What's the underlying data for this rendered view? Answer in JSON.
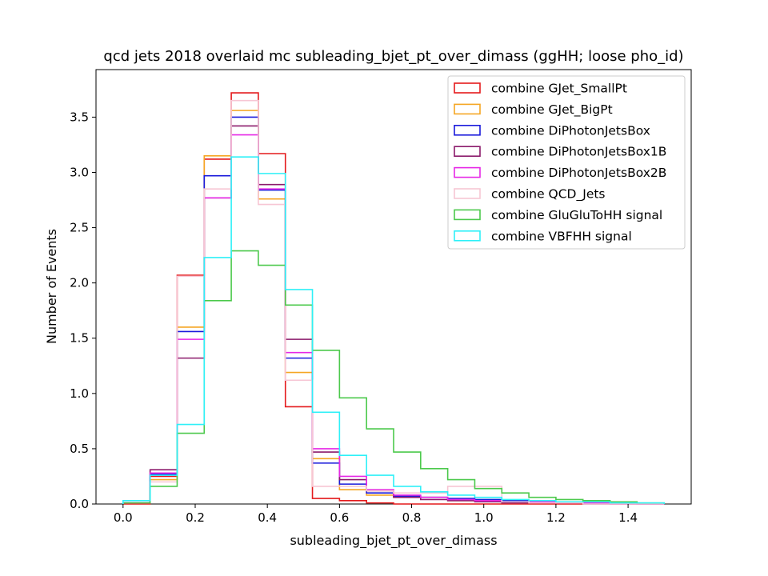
{
  "chart_data": {
    "type": "histogram",
    "title": "qcd jets 2018 overlaid mc subleading_bjet_pt_over_dimass (ggHH; loose pho_id)",
    "xlabel": "subleading_bjet_pt_over_dimass",
    "ylabel": "Number of Events",
    "xlim": [
      -0.075,
      1.575
    ],
    "ylim": [
      0,
      3.93
    ],
    "bin_edges": [
      0.0,
      0.075,
      0.15,
      0.225,
      0.3,
      0.375,
      0.45,
      0.525,
      0.6,
      0.675,
      0.75,
      0.825,
      0.9,
      0.975,
      1.05,
      1.125,
      1.2,
      1.275,
      1.35,
      1.425,
      1.5
    ],
    "x_ticks": [
      {
        "value": 0.0,
        "label": "0.0"
      },
      {
        "value": 0.2,
        "label": "0.2"
      },
      {
        "value": 0.4,
        "label": "0.4"
      },
      {
        "value": 0.6,
        "label": "0.6"
      },
      {
        "value": 0.8,
        "label": "0.8"
      },
      {
        "value": 1.0,
        "label": "1.0"
      },
      {
        "value": 1.2,
        "label": "1.2"
      },
      {
        "value": 1.4,
        "label": "1.4"
      }
    ],
    "y_ticks": [
      {
        "value": 0.0,
        "label": "0.0"
      },
      {
        "value": 0.5,
        "label": "0.5"
      },
      {
        "value": 1.0,
        "label": "1.0"
      },
      {
        "value": 1.5,
        "label": "1.5"
      },
      {
        "value": 2.0,
        "label": "2.0"
      },
      {
        "value": 2.5,
        "label": "2.5"
      },
      {
        "value": 3.0,
        "label": "3.0"
      },
      {
        "value": 3.5,
        "label": "3.5"
      }
    ],
    "legend_position": "top-right",
    "grid": false,
    "series": [
      {
        "name": "combine GJet_SmallPt",
        "color": "#e41a1c",
        "values": [
          0.0,
          0.25,
          2.07,
          3.12,
          3.72,
          3.17,
          0.88,
          0.05,
          0.03,
          0.01,
          0.0,
          0.0,
          0.0,
          0.0,
          0.0,
          0.0,
          0.0,
          0.01,
          0.0,
          0.0
        ]
      },
      {
        "name": "combine GJet_BigPt",
        "color": "#f5a623",
        "values": [
          0.01,
          0.22,
          1.6,
          3.15,
          3.56,
          2.76,
          1.19,
          0.41,
          0.13,
          0.08,
          0.06,
          0.06,
          0.03,
          0.02,
          0.02,
          0.01,
          0.01,
          0.03,
          0.01,
          0.0
        ]
      },
      {
        "name": "combine DiPhotonJetsBox",
        "color": "#1a1adb",
        "values": [
          0.01,
          0.27,
          1.56,
          2.97,
          3.5,
          2.84,
          1.32,
          0.37,
          0.18,
          0.1,
          0.07,
          0.06,
          0.05,
          0.04,
          0.03,
          0.02,
          0.01,
          0.01,
          0.01,
          0.0
        ]
      },
      {
        "name": "combine DiPhotonJetsBox1B",
        "color": "#8b1a6b",
        "values": [
          0.01,
          0.31,
          1.32,
          2.77,
          3.42,
          2.89,
          1.49,
          0.47,
          0.22,
          0.12,
          0.06,
          0.04,
          0.03,
          0.02,
          0.01,
          0.01,
          0.01,
          0.0,
          0.0,
          0.0
        ]
      },
      {
        "name": "combine DiPhotonJetsBox2B",
        "color": "#e628e6",
        "values": [
          0.01,
          0.28,
          1.49,
          2.77,
          3.34,
          2.85,
          1.37,
          0.5,
          0.25,
          0.13,
          0.08,
          0.06,
          0.04,
          0.03,
          0.02,
          0.02,
          0.01,
          0.01,
          0.0,
          0.0
        ]
      },
      {
        "name": "combine QCD_Jets",
        "color": "#f7c6d4",
        "values": [
          0.01,
          0.2,
          2.06,
          2.85,
          3.65,
          2.71,
          1.12,
          0.16,
          0.16,
          0.12,
          0.1,
          0.1,
          0.16,
          0.16,
          0.02,
          0.01,
          0.01,
          0.0,
          0.0,
          0.0
        ]
      },
      {
        "name": "combine GluGluToHH signal",
        "color": "#4cc94c",
        "values": [
          0.01,
          0.16,
          0.64,
          1.84,
          2.29,
          2.16,
          1.8,
          1.39,
          0.96,
          0.68,
          0.47,
          0.32,
          0.22,
          0.14,
          0.1,
          0.06,
          0.04,
          0.03,
          0.02,
          0.01
        ]
      },
      {
        "name": "combine VBFHH signal",
        "color": "#2ef0f8",
        "values": [
          0.03,
          0.26,
          0.72,
          2.23,
          3.14,
          2.99,
          1.94,
          0.83,
          0.44,
          0.26,
          0.16,
          0.11,
          0.08,
          0.06,
          0.04,
          0.03,
          0.02,
          0.02,
          0.01,
          0.01
        ]
      }
    ]
  }
}
